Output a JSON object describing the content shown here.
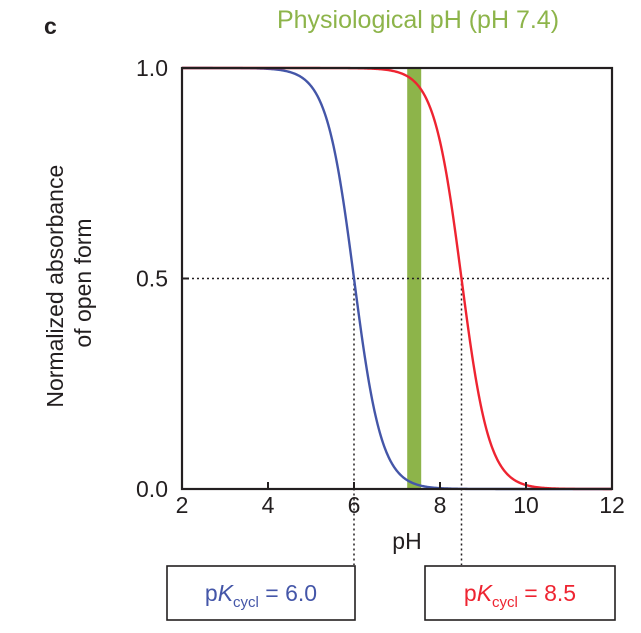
{
  "panel_label": "c",
  "colors": {
    "series_1": "#4456a8",
    "series_2": "#ee2431",
    "band": "#8db44a",
    "axis": "#231f20"
  },
  "chart_data": {
    "type": "line",
    "title": "Physiological pH (pH 7.4)",
    "xlabel": "pH",
    "ylabel": [
      "Normalized absorbance",
      "of open form"
    ],
    "xlim": [
      2,
      12
    ],
    "ylim": [
      0,
      1
    ],
    "xticks": [
      2,
      4,
      6,
      8,
      10,
      12
    ],
    "yticks": [
      "0.0",
      "0.5",
      "1.0"
    ],
    "y_tick_values": [
      0,
      0.5,
      1.0
    ],
    "grid": false,
    "highlight_band": {
      "x_center": 7.4,
      "label": "Physiological pH (pH 7.4)"
    },
    "reference_line_y": 0.5,
    "series": [
      {
        "color": "#4456a8",
        "pk": 6.0,
        "annotation": {
          "prefix": "p",
          "italic": "K",
          "subscript": "cycl",
          "suffix": " = 6.0"
        },
        "x": [
          2,
          3,
          4,
          4.5,
          5,
          5.25,
          5.5,
          5.75,
          6.0,
          6.25,
          6.5,
          6.75,
          7,
          7.5,
          8,
          9,
          10,
          11,
          12
        ],
        "y": [
          1.0,
          0.999,
          0.99,
          0.97,
          0.91,
          0.85,
          0.76,
          0.64,
          0.5,
          0.36,
          0.24,
          0.15,
          0.09,
          0.03,
          0.01,
          0.001,
          0.0,
          0.0,
          0.0
        ]
      },
      {
        "color": "#ee2431",
        "pk": 8.5,
        "annotation": {
          "prefix": "p",
          "italic": "K",
          "subscript": "cycl",
          "suffix": " = 8.5"
        },
        "x": [
          2,
          4,
          5,
          6,
          6.5,
          7,
          7.5,
          7.75,
          8,
          8.25,
          8.5,
          8.75,
          9,
          9.25,
          9.5,
          10,
          10.5,
          11,
          12
        ],
        "y": [
          1.0,
          1.0,
          1.0,
          0.999,
          0.99,
          0.97,
          0.91,
          0.85,
          0.76,
          0.64,
          0.5,
          0.36,
          0.24,
          0.15,
          0.09,
          0.03,
          0.01,
          0.003,
          0.0
        ]
      }
    ]
  }
}
